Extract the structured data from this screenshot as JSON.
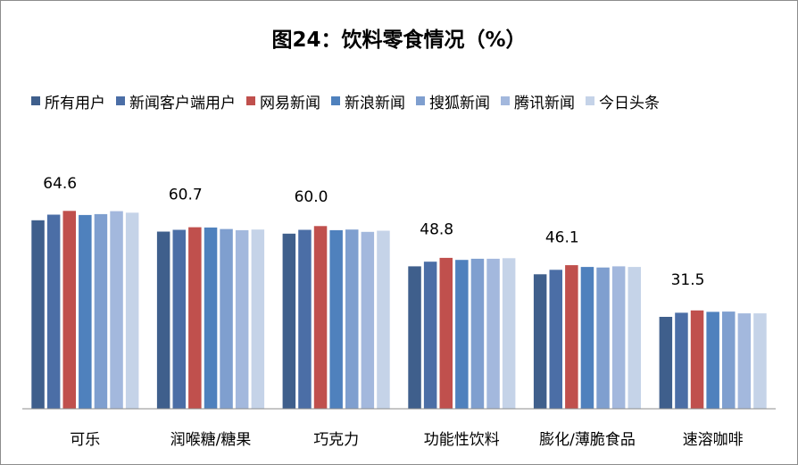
{
  "chart_data": {
    "type": "bar",
    "title": "图24：饮料零食情况（%）",
    "categories": [
      "可乐",
      "润喉糖/糖果",
      "巧克力",
      "功能性饮料",
      "膨化/薄脆食品",
      "速溶咖啡"
    ],
    "series": [
      {
        "name": "所有用户",
        "color": "#3f5f8c",
        "values": [
          64.6,
          60.7,
          60.0,
          48.8,
          46.1,
          31.5
        ]
      },
      {
        "name": "新闻客户端用户",
        "color": "#4b6ea6",
        "values": [
          66.5,
          61.3,
          61.3,
          50.4,
          47.6,
          32.9
        ]
      },
      {
        "name": "网易新闻",
        "color": "#c0504d",
        "values": [
          67.8,
          62.2,
          62.6,
          51.7,
          49.2,
          33.7
        ]
      },
      {
        "name": "新浪新闻",
        "color": "#4f81bd",
        "values": [
          66.4,
          62.1,
          61.2,
          51.0,
          48.6,
          33.2
        ]
      },
      {
        "name": "搜狐新闻",
        "color": "#7f9fcf",
        "values": [
          66.7,
          61.6,
          61.4,
          51.4,
          48.4,
          33.3
        ]
      },
      {
        "name": "腾讯新闻",
        "color": "#a3b8dd",
        "values": [
          67.7,
          61.2,
          60.6,
          51.4,
          48.8,
          32.7
        ]
      },
      {
        "name": "今日头条",
        "color": "#c5d3e8",
        "values": [
          67.2,
          61.4,
          61.0,
          51.6,
          48.6,
          32.7
        ]
      }
    ],
    "data_labels": [
      "64.6",
      "60.7",
      "60.0",
      "48.8",
      "46.1",
      "31.5"
    ],
    "ylim": [
      0,
      100
    ],
    "grid": false,
    "legend_position": "top"
  }
}
